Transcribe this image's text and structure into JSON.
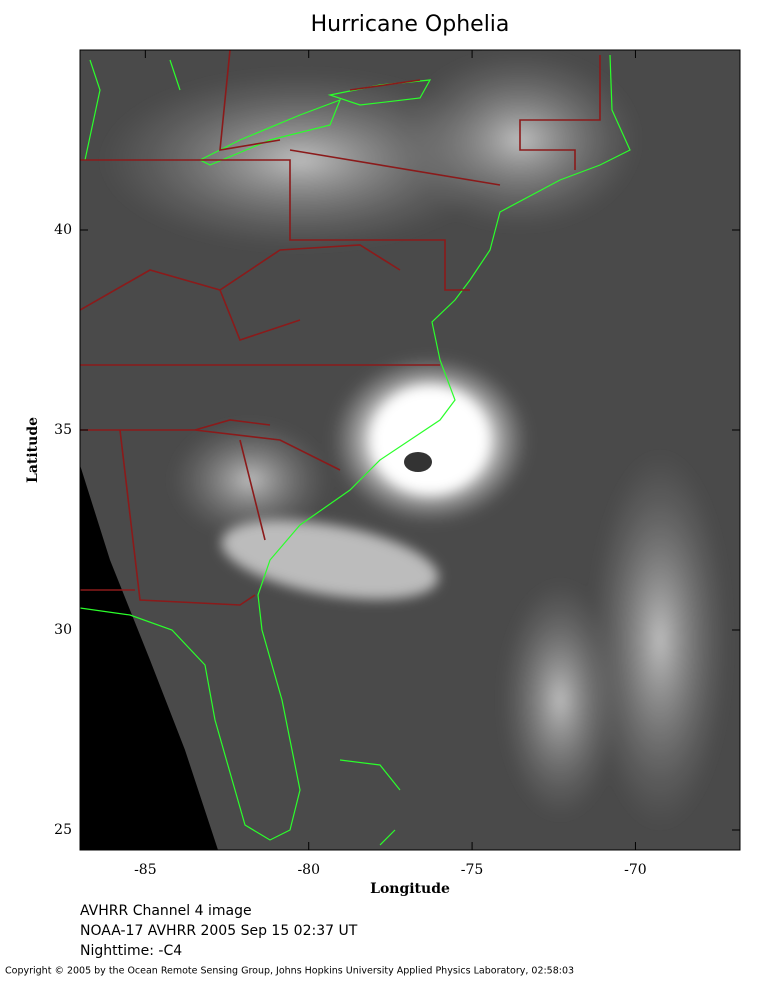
{
  "chart_data": {
    "type": "map",
    "title": "Hurricane Ophelia",
    "x_label": "Longitude",
    "y_label": "Latitude",
    "xlim": [
      -87,
      -66.8
    ],
    "ylim": [
      24.5,
      44.5
    ],
    "xticks": [
      -85,
      -80,
      -75,
      -70
    ],
    "yticks": [
      25,
      30,
      35,
      40
    ],
    "notes": [
      "AVHRR Channel 4 image",
      "NOAA-17 AVHRR 2005 Sep 15 02:37 UT",
      "Nighttime: -C4"
    ],
    "copyright": "Copyright © 2005 by the Ocean Remote Sensing Group, Johns Hopkins University Applied Physics Laboratory, 02:58:03"
  }
}
